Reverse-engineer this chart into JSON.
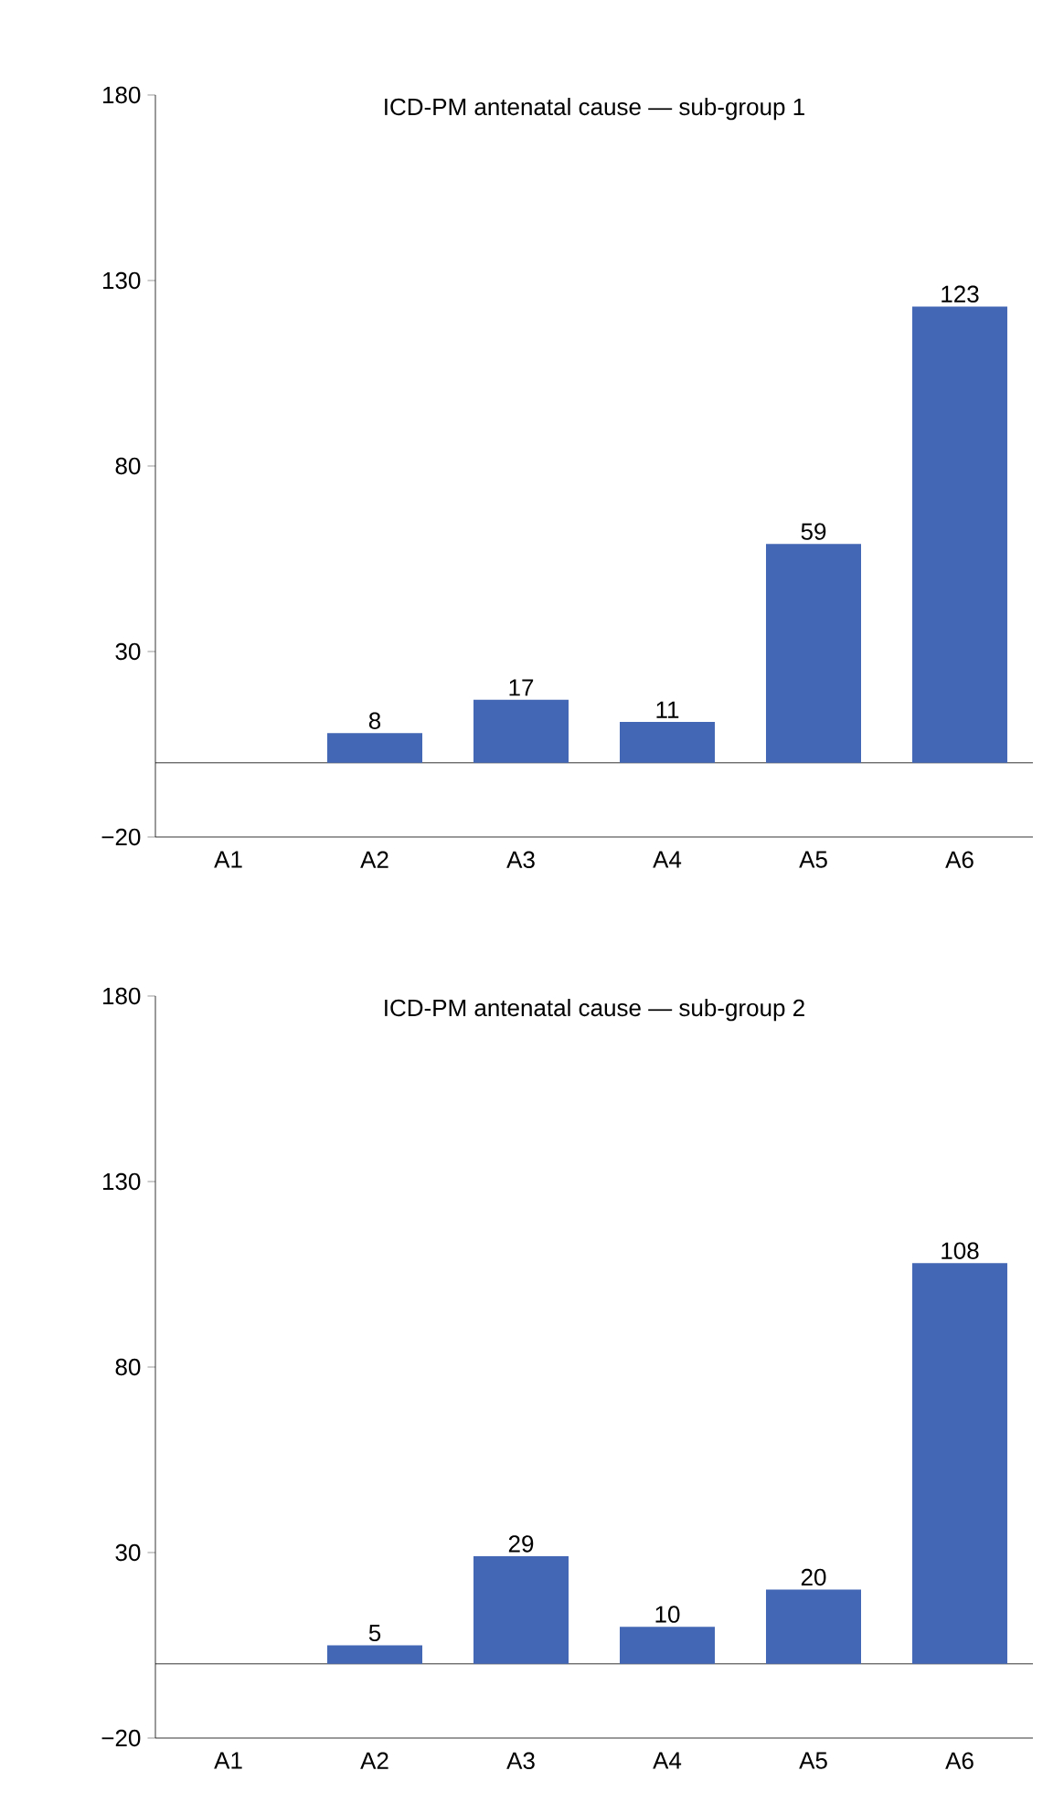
{
  "chart_data": [
    {
      "type": "bar",
      "title": "ICD-PM antenatal cause — sub-group 1",
      "categories": [
        "A1",
        "A2",
        "A3",
        "A4",
        "A5",
        "A6"
      ],
      "values": [
        null,
        8,
        17,
        11,
        59,
        123
      ],
      "color": "#4467b5",
      "data_labels": true,
      "ylim": [
        -20,
        180
      ],
      "yticks": [
        {
          "value": -20,
          "label": "−20"
        },
        30,
        80,
        130,
        180
      ],
      "ref_lines": [
        {
          "axis": "y",
          "value": 0
        }
      ]
    },
    {
      "type": "bar",
      "title": "ICD-PM antenatal cause — sub-group 2",
      "categories": [
        "A1",
        "A2",
        "A3",
        "A4",
        "A5",
        "A6"
      ],
      "values": [
        null,
        5,
        29,
        10,
        20,
        108
      ],
      "color": "#4467b5",
      "data_labels": true,
      "ylim": [
        -20,
        180
      ],
      "yticks": [
        {
          "value": -20,
          "label": "−20"
        },
        30,
        80,
        130,
        180
      ],
      "ref_lines": [
        {
          "axis": "y",
          "value": 0
        }
      ]
    }
  ]
}
